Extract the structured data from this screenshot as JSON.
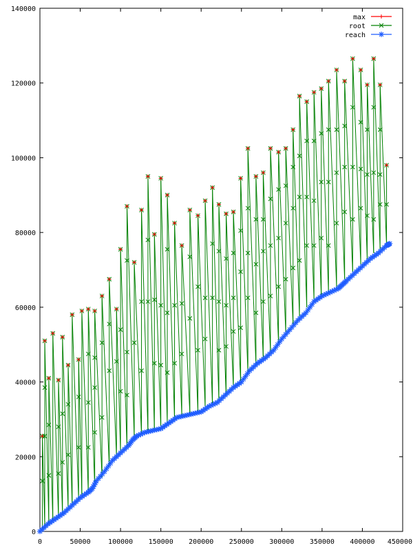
{
  "chart_data": {
    "type": "line",
    "title": "",
    "xlabel": "",
    "ylabel": "",
    "xlim": [
      0,
      450000
    ],
    "ylim": [
      0,
      140000
    ],
    "x_ticks": [
      0,
      50000,
      100000,
      150000,
      200000,
      250000,
      300000,
      350000,
      400000,
      450000
    ],
    "y_ticks": [
      0,
      20000,
      40000,
      60000,
      80000,
      100000,
      120000,
      140000
    ],
    "x_tick_labels": [
      "0",
      "50000",
      "100000",
      "150000",
      "200000",
      "250000",
      "300000",
      "350000",
      "400000",
      "450000"
    ],
    "y_tick_labels": [
      "0",
      "20000",
      "40000",
      "60000",
      "80000",
      "100000",
      "120000",
      "140000"
    ],
    "grid": false,
    "legend_position": "top-right",
    "series": [
      {
        "name": "max",
        "color": "#ff0000",
        "marker": "plus"
      },
      {
        "name": "root",
        "color": "#008000",
        "marker": "cross"
      },
      {
        "name": "reach",
        "color": "#1e5cff",
        "marker": "star"
      }
    ],
    "reach": [
      [
        0,
        0
      ],
      [
        10000,
        2000
      ],
      [
        20000,
        3500
      ],
      [
        30000,
        5000
      ],
      [
        40000,
        7000
      ],
      [
        50000,
        9000
      ],
      [
        60000,
        10500
      ],
      [
        65000,
        11500
      ],
      [
        70000,
        13500
      ],
      [
        80000,
        16000
      ],
      [
        90000,
        19000
      ],
      [
        100000,
        21000
      ],
      [
        110000,
        23000
      ],
      [
        115000,
        24500
      ],
      [
        120000,
        25500
      ],
      [
        130000,
        26500
      ],
      [
        140000,
        27000
      ],
      [
        150000,
        27500
      ],
      [
        160000,
        29000
      ],
      [
        170000,
        30500
      ],
      [
        180000,
        31000
      ],
      [
        190000,
        31500
      ],
      [
        200000,
        32000
      ],
      [
        210000,
        33500
      ],
      [
        220000,
        34500
      ],
      [
        230000,
        36500
      ],
      [
        240000,
        38500
      ],
      [
        250000,
        40000
      ],
      [
        260000,
        43000
      ],
      [
        270000,
        45000
      ],
      [
        280000,
        46500
      ],
      [
        290000,
        48500
      ],
      [
        300000,
        51500
      ],
      [
        310000,
        54000
      ],
      [
        320000,
        56500
      ],
      [
        330000,
        58500
      ],
      [
        340000,
        61500
      ],
      [
        350000,
        63000
      ],
      [
        360000,
        64000
      ],
      [
        370000,
        65000
      ],
      [
        375000,
        66000
      ],
      [
        380000,
        67000
      ],
      [
        390000,
        69000
      ],
      [
        400000,
        71000
      ],
      [
        410000,
        73000
      ],
      [
        420000,
        74500
      ],
      [
        430000,
        76500
      ],
      [
        434000,
        77000
      ]
    ],
    "cycles": [
      {
        "x": 3000,
        "low": 500,
        "root": [
          13500
        ],
        "peak": 25500,
        "max": 25500
      },
      {
        "x": 6000,
        "low": 1500,
        "root": [
          25500,
          38500
        ],
        "peak": 51000,
        "max": 51000
      },
      {
        "x": 11000,
        "low": 2500,
        "root": [
          15000,
          28500
        ],
        "peak": 41000,
        "max": 41000
      },
      {
        "x": 16000,
        "low": 3000,
        "root": [],
        "peak": 53000,
        "max": 53000
      },
      {
        "x": 23000,
        "low": 3500,
        "root": [
          15500,
          28000
        ],
        "peak": 40500,
        "max": 40500
      },
      {
        "x": 28000,
        "low": 4500,
        "root": [
          18500,
          31500
        ],
        "peak": 52000,
        "max": 52000
      },
      {
        "x": 35000,
        "low": 6000,
        "root": [
          20500,
          34000
        ],
        "peak": 44500,
        "max": 44500
      },
      {
        "x": 40000,
        "low": 7000,
        "root": [],
        "peak": 58000,
        "max": 58000
      },
      {
        "x": 48000,
        "low": 8500,
        "root": [
          22500,
          36000
        ],
        "peak": 46000,
        "max": 46000
      },
      {
        "x": 52000,
        "low": 9500,
        "root": [],
        "peak": 59000,
        "max": 59000
      },
      {
        "x": 60000,
        "low": 10500,
        "root": [
          22500,
          34500,
          47500
        ],
        "peak": 59500,
        "max": 59500
      },
      {
        "x": 68000,
        "low": 12000,
        "root": [
          26500,
          38500,
          46500
        ],
        "peak": 59000,
        "max": 59000
      },
      {
        "x": 77000,
        "low": 14500,
        "root": [
          30500,
          50500
        ],
        "peak": 63000,
        "max": 63000
      },
      {
        "x": 86000,
        "low": 17500,
        "root": [
          43000,
          55500
        ],
        "peak": 67500,
        "max": 67500
      },
      {
        "x": 95000,
        "low": 20000,
        "root": [
          45500
        ],
        "peak": 59500,
        "max": 59500
      },
      {
        "x": 100000,
        "low": 21000,
        "root": [
          37500,
          54000
        ],
        "peak": 75500,
        "max": 75500
      },
      {
        "x": 108000,
        "low": 22500,
        "root": [
          36500,
          48000,
          72500
        ],
        "peak": 87000,
        "max": 87000
      },
      {
        "x": 117000,
        "low": 25000,
        "root": [
          50500
        ],
        "peak": 72000,
        "max": 72000
      },
      {
        "x": 126000,
        "low": 26000,
        "root": [
          43000,
          61500
        ],
        "peak": 86000,
        "max": 86000
      },
      {
        "x": 134000,
        "low": 26500,
        "root": [
          61500,
          78000
        ],
        "peak": 95000,
        "max": 95000
      },
      {
        "x": 142000,
        "low": 27000,
        "root": [
          45000,
          62000
        ],
        "peak": 79500,
        "max": 79500
      },
      {
        "x": 150000,
        "low": 27500,
        "root": [
          44500,
          60500
        ],
        "peak": 94500,
        "max": 94500
      },
      {
        "x": 158000,
        "low": 28500,
        "root": [
          42500,
          58500,
          75500
        ],
        "peak": 90000,
        "max": 90000
      },
      {
        "x": 167000,
        "low": 30000,
        "root": [
          45000,
          60500
        ],
        "peak": 82500,
        "max": 82500
      },
      {
        "x": 176000,
        "low": 31000,
        "root": [
          47500,
          61000
        ],
        "peak": 76500,
        "max": 76500
      },
      {
        "x": 186000,
        "low": 31500,
        "root": [
          57000,
          73500
        ],
        "peak": 86000,
        "max": 86000
      },
      {
        "x": 196000,
        "low": 32000,
        "root": [
          48500,
          65500
        ],
        "peak": 84500,
        "max": 84500
      },
      {
        "x": 205000,
        "low": 33000,
        "root": [
          51500,
          62500
        ],
        "peak": 88500,
        "max": 88500
      },
      {
        "x": 214000,
        "low": 34000,
        "root": [
          62500,
          77000
        ],
        "peak": 92000,
        "max": 92000
      },
      {
        "x": 222000,
        "low": 35000,
        "root": [
          48500,
          61500,
          75000
        ],
        "peak": 87500,
        "max": 87500
      },
      {
        "x": 231000,
        "low": 36500,
        "root": [
          49500,
          60500,
          73000
        ],
        "peak": 85000,
        "max": 85000
      },
      {
        "x": 240000,
        "low": 38500,
        "root": [
          53500,
          62500,
          74500
        ],
        "peak": 85500,
        "max": 85500
      },
      {
        "x": 249000,
        "low": 40000,
        "root": [
          54500,
          69500,
          80500
        ],
        "peak": 94500,
        "max": 94500
      },
      {
        "x": 258000,
        "low": 42500,
        "root": [
          62500,
          74500,
          86500
        ],
        "peak": 102500,
        "max": 102500
      },
      {
        "x": 268000,
        "low": 44500,
        "root": [
          58500,
          71500,
          83500
        ],
        "peak": 95000,
        "max": 95000
      },
      {
        "x": 277000,
        "low": 46500,
        "root": [
          61500,
          75000,
          83500
        ],
        "peak": 96000,
        "max": 96000
      },
      {
        "x": 286000,
        "low": 48000,
        "root": [
          63000,
          76500,
          89000
        ],
        "peak": 102500,
        "max": 102500
      },
      {
        "x": 296000,
        "low": 50500,
        "root": [
          65500,
          78500,
          91500
        ],
        "peak": 101500,
        "max": 101500
      },
      {
        "x": 305000,
        "low": 53000,
        "root": [
          67500,
          82500,
          92500
        ],
        "peak": 102500,
        "max": 102500
      },
      {
        "x": 314000,
        "low": 55500,
        "root": [
          70500,
          86500,
          97500
        ],
        "peak": 107500,
        "max": 107500
      },
      {
        "x": 322000,
        "low": 57500,
        "root": [
          72500,
          89500,
          100500
        ],
        "peak": 116500,
        "max": 116500
      },
      {
        "x": 331000,
        "low": 60000,
        "root": [
          76500,
          89500,
          104500
        ],
        "peak": 115000,
        "max": 115000
      },
      {
        "x": 340000,
        "low": 62000,
        "root": [
          76500,
          88500,
          104500
        ],
        "peak": 117500,
        "max": 117500
      },
      {
        "x": 349000,
        "low": 63000,
        "root": [
          78500,
          93500,
          106500
        ],
        "peak": 118500,
        "max": 118500
      },
      {
        "x": 358000,
        "low": 64000,
        "root": [
          76500,
          93500,
          107500
        ],
        "peak": 120500,
        "max": 120500
      },
      {
        "x": 368000,
        "low": 65500,
        "root": [
          82500,
          96000,
          107500
        ],
        "peak": 123500,
        "max": 123500
      },
      {
        "x": 378000,
        "low": 67500,
        "root": [
          85500,
          97500,
          108500
        ],
        "peak": 120500,
        "max": 120500
      },
      {
        "x": 388000,
        "low": 69500,
        "root": [
          83500,
          97500,
          113500
        ],
        "peak": 126500,
        "max": 126500
      },
      {
        "x": 398000,
        "low": 71500,
        "root": [
          86500,
          97000,
          109500
        ],
        "peak": 123500,
        "max": 123500
      },
      {
        "x": 406000,
        "low": 73000,
        "root": [
          84500,
          95500,
          107500
        ],
        "peak": 119500,
        "max": 119500
      },
      {
        "x": 414000,
        "low": 74500,
        "root": [
          83500,
          96000,
          113500
        ],
        "peak": 126500,
        "max": 126500
      },
      {
        "x": 422000,
        "low": 75500,
        "root": [
          87500,
          95500,
          107500
        ],
        "peak": 119500,
        "max": 119500
      },
      {
        "x": 430000,
        "low": 76500,
        "root": [
          87500
        ],
        "peak": 98000,
        "max": 98000
      }
    ]
  }
}
